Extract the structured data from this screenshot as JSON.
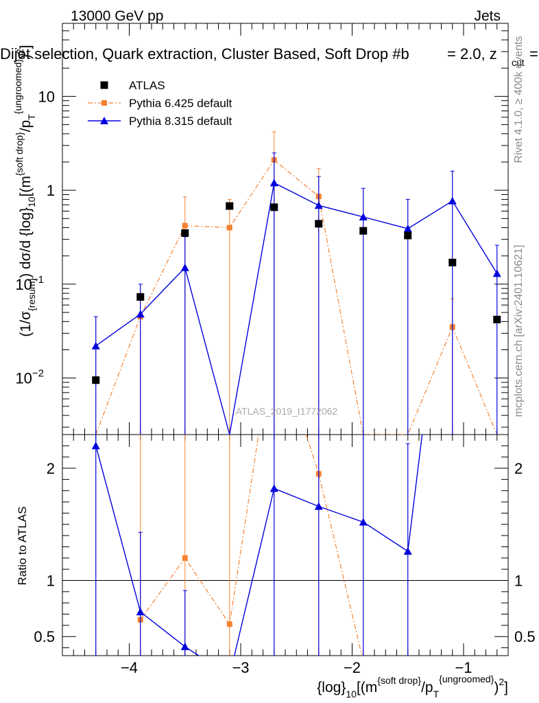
{
  "chart_data": {
    "type": "line",
    "header_left": "13000 GeV pp",
    "header_right": "Jets",
    "title": "Dijet selection, Quark extraction, Cluster Based, Soft Drop #b",
    "title_suffix": "= 2.0, z",
    "title_sub": "cut",
    "title_tail": "=",
    "watermark": "ATLAS_2019_I1772062",
    "side_rivet": "Rivet 4.1.0, ≥ 400k events",
    "side_mcplots": "mcplots.cern.ch [arXiv:2401.10621]",
    "ylabel": {
      "pre": "(1/σ",
      "pre_sub": "{resum}",
      "mid": ") dσ/d {log}",
      "mid_sub": "10",
      "post": "[(m",
      "post_sup": "{soft drop}",
      "post2": "/p",
      "post2_sub": "T",
      "post2_sup": "{ungroomed}",
      "end": ")",
      "end_sup": "2",
      "close": "]"
    },
    "xlabel": {
      "pre": "{log}",
      "pre_sub": "10",
      "mid": "[(m",
      "mid_sup": "{soft drop}",
      "mid2": "/p",
      "mid2_sub": "T",
      "mid2_sup": "{ungroomed}",
      "end": ")",
      "end_sup": "2",
      "close": "]"
    },
    "ratio_ylabel": "Ratio to ATLAS",
    "x_range": [
      -4.6,
      -0.6
    ],
    "x_ticks": [
      -4,
      -3,
      -2,
      -1
    ],
    "x_tick_labels": [
      "−4",
      "−3",
      "−2",
      "−1"
    ],
    "y_log_range": [
      0.0025,
      60
    ],
    "y_ticks": [
      0.01,
      0.1,
      1,
      10
    ],
    "y_tick_labels": [
      {
        "base": "10",
        "exp": "−2"
      },
      {
        "base": "10",
        "exp": "−1"
      },
      {
        "base": "1",
        "exp": ""
      },
      {
        "base": "10",
        "exp": ""
      }
    ],
    "ratio_range": [
      0.33,
      2.3
    ],
    "ratio_ticks": [
      0.5,
      1,
      2
    ],
    "ratio_tick_labels": [
      "0.5",
      "1",
      "2"
    ],
    "x": [
      -4.3,
      -3.9,
      -3.5,
      -3.1,
      -2.7,
      -2.3,
      -1.9,
      -1.5,
      -1.1,
      -0.7
    ],
    "series": [
      {
        "name": "ATLAS",
        "style": "data",
        "color": "#000000",
        "values": [
          0.0095,
          0.073,
          0.35,
          0.68,
          0.66,
          0.44,
          0.37,
          0.33,
          0.17,
          0.042
        ]
      },
      {
        "name": "Pythia 6.425 default",
        "style": "dashdot-square",
        "color": "#f58231",
        "values": [
          null,
          0.045,
          0.42,
          0.4,
          2.1,
          0.86,
          null,
          null,
          0.035,
          null
        ],
        "err_up": [
          null,
          0.08,
          0.85,
          0.8,
          4.2,
          1.7,
          null,
          null,
          0.07,
          null
        ],
        "ratio": [
          null,
          0.65,
          1.2,
          0.61,
          3.2,
          1.95,
          0.28,
          null,
          0.2,
          null
        ]
      },
      {
        "name": "Pythia 8.315 default",
        "style": "solid-triangle",
        "color": "#0000dd",
        "values": [
          0.022,
          0.048,
          0.15,
          0.001,
          1.2,
          0.69,
          0.52,
          0.39,
          0.77,
          0.13
        ],
        "err_up": [
          0.045,
          0.1,
          0.32,
          null,
          2.5,
          1.4,
          1.05,
          0.8,
          1.6,
          0.26
        ],
        "ratio": [
          2.2,
          0.72,
          0.41,
          0.15,
          1.82,
          1.66,
          1.52,
          1.26,
          4.5,
          3.2
        ],
        "ratio_err_up": [
          null,
          1.43,
          0.91,
          null,
          null,
          null,
          null,
          2.22,
          null,
          null
        ]
      }
    ]
  }
}
